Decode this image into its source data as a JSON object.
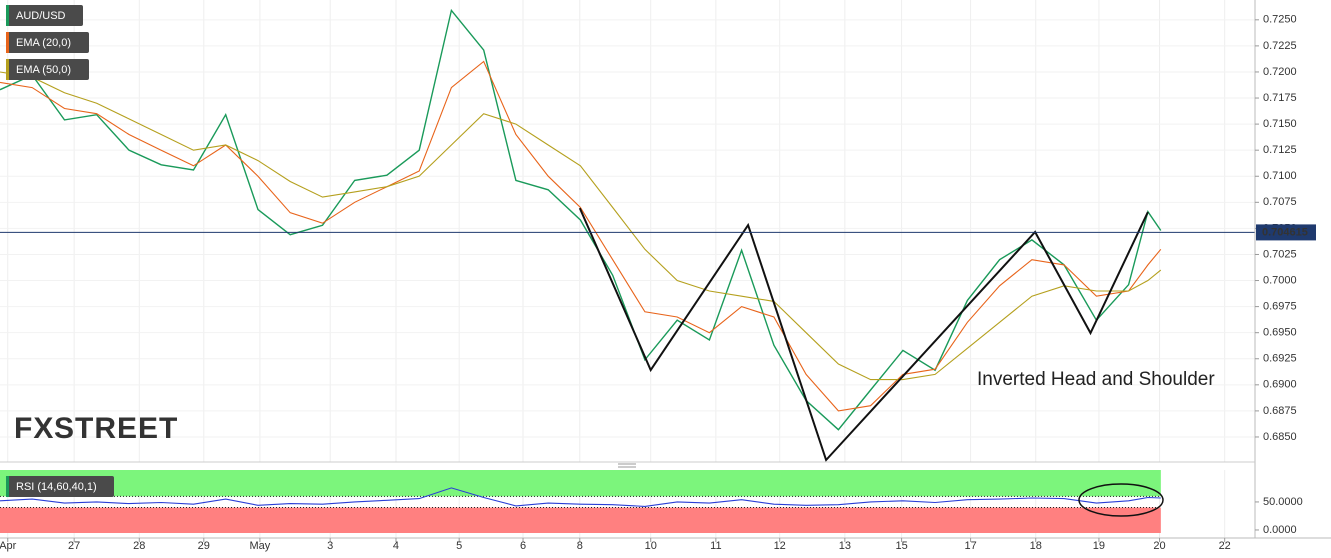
{
  "chart_data": [
    {
      "type": "line",
      "watermark_left": "FX",
      "watermark_right": "STREET",
      "x": [
        0,
        0.5,
        1,
        1.5,
        2,
        2.5,
        3,
        3.5,
        4,
        4.5,
        5,
        5.5,
        6,
        6.5,
        7,
        7.5,
        8,
        8.5,
        9,
        9.5,
        10,
        10.5,
        11,
        11.5,
        12,
        12.5,
        13,
        13.5,
        14,
        14.5,
        15,
        15.5,
        16,
        16.5,
        17,
        17.5,
        17.8,
        18
      ],
      "series": [
        {
          "name": "AUD/USD",
          "color": "#1a9a5a",
          "values": [
            0.7183,
            0.7197,
            0.7154,
            0.7159,
            0.7125,
            0.7111,
            0.7106,
            0.7159,
            0.7068,
            0.7044,
            0.7053,
            0.7096,
            0.7101,
            0.7125,
            0.7259,
            0.7221,
            0.7096,
            0.7087,
            0.7058,
            0.7005,
            0.6924,
            0.6962,
            0.6943,
            0.7029,
            0.6938,
            0.6885,
            0.6857,
            0.6895,
            0.6933,
            0.6914,
            0.6981,
            0.702,
            0.7039,
            0.7015,
            0.6962,
            0.6996,
            0.7066,
            0.7048
          ]
        },
        {
          "name": "EMA (20,0)",
          "color": "#e8641b",
          "values": [
            0.719,
            0.7185,
            0.7165,
            0.716,
            0.714,
            0.7125,
            0.711,
            0.713,
            0.71,
            0.7065,
            0.7055,
            0.7075,
            0.709,
            0.7105,
            0.7185,
            0.721,
            0.714,
            0.71,
            0.707,
            0.702,
            0.697,
            0.6965,
            0.695,
            0.6975,
            0.6965,
            0.691,
            0.6875,
            0.688,
            0.691,
            0.6915,
            0.696,
            0.6995,
            0.702,
            0.7015,
            0.6985,
            0.699,
            0.7015,
            0.703
          ]
        },
        {
          "name": "EMA (50,0)",
          "color": "#b5a01e",
          "values": [
            0.72,
            0.7195,
            0.718,
            0.717,
            0.7155,
            0.714,
            0.7125,
            0.713,
            0.7115,
            0.7095,
            0.708,
            0.7085,
            0.709,
            0.71,
            0.713,
            0.716,
            0.715,
            0.713,
            0.711,
            0.707,
            0.703,
            0.7,
            0.699,
            0.6985,
            0.698,
            0.695,
            0.692,
            0.6905,
            0.6905,
            0.691,
            0.6935,
            0.696,
            0.6985,
            0.6995,
            0.699,
            0.699,
            0.7,
            0.701
          ]
        }
      ],
      "pattern": {
        "label": "Inverted Head and Shoulder",
        "color": "#111111",
        "x": [
          8.99,
          10.09,
          11.6,
          12.81,
          16.05,
          16.91,
          17.8
        ],
        "values": [
          0.70695,
          0.69142,
          0.70532,
          0.68279,
          0.70465,
          0.69497,
          0.70657
        ]
      },
      "last_price": 0.704615,
      "xlim": [
        0,
        19.46
      ],
      "xticks": [
        {
          "value": 0.12,
          "label": "Apr"
        },
        {
          "value": 1.15,
          "label": "27"
        },
        {
          "value": 2.16,
          "label": "28"
        },
        {
          "value": 3.16,
          "label": "29"
        },
        {
          "value": 4.03,
          "label": "May"
        },
        {
          "value": 5.12,
          "label": "3"
        },
        {
          "value": 6.14,
          "label": "4"
        },
        {
          "value": 7.12,
          "label": "5"
        },
        {
          "value": 8.11,
          "label": "6"
        },
        {
          "value": 8.99,
          "label": "8"
        },
        {
          "value": 10.09,
          "label": "10"
        },
        {
          "value": 11.1,
          "label": "11"
        },
        {
          "value": 12.09,
          "label": "12"
        },
        {
          "value": 13.1,
          "label": "13"
        },
        {
          "value": 13.98,
          "label": "15"
        },
        {
          "value": 15.05,
          "label": "17"
        },
        {
          "value": 16.06,
          "label": "18"
        },
        {
          "value": 17.04,
          "label": "19"
        },
        {
          "value": 17.98,
          "label": "20"
        },
        {
          "value": 18.99,
          "label": "22"
        }
      ],
      "ylim": [
        0.6826,
        0.7269
      ],
      "yticks": [
        {
          "value": 0.725,
          "label": "0.7250"
        },
        0.7225,
        {
          "value": 0.72,
          "label": "0.7200"
        },
        0.7175,
        {
          "value": 0.715,
          "label": "0.7150"
        },
        0.7125,
        {
          "value": 0.71,
          "label": "0.7100"
        },
        0.7075,
        {
          "value": 0.705,
          "label": "0.7050"
        },
        0.7025,
        {
          "value": 0.7,
          "label": "0.7000"
        },
        0.6975,
        {
          "value": 0.695,
          "label": "0.6950"
        },
        0.6925,
        {
          "value": 0.69,
          "label": "0.6900"
        },
        0.6875,
        {
          "value": 0.685,
          "label": "0.6850"
        }
      ],
      "grid": true
    },
    {
      "type": "line",
      "upper": 60,
      "lower": 40,
      "series": [
        {
          "name": "RSI (14,60,40,1)",
          "color": "#2a3fd6",
          "values": [
            52,
            55,
            48,
            50,
            47,
            49,
            46,
            55,
            44,
            47,
            46,
            50,
            53,
            56,
            75,
            58,
            43,
            48,
            46,
            45,
            42,
            50,
            48,
            54,
            46,
            44,
            45,
            50,
            52,
            49,
            54,
            55,
            57,
            56,
            48,
            52,
            58,
            57
          ]
        }
      ],
      "ylim": [
        -9,
        107
      ],
      "yticks": [
        {
          "value": 50,
          "label": "50.0000"
        },
        {
          "value": 0,
          "label": "0.0000"
        }
      ]
    }
  ]
}
